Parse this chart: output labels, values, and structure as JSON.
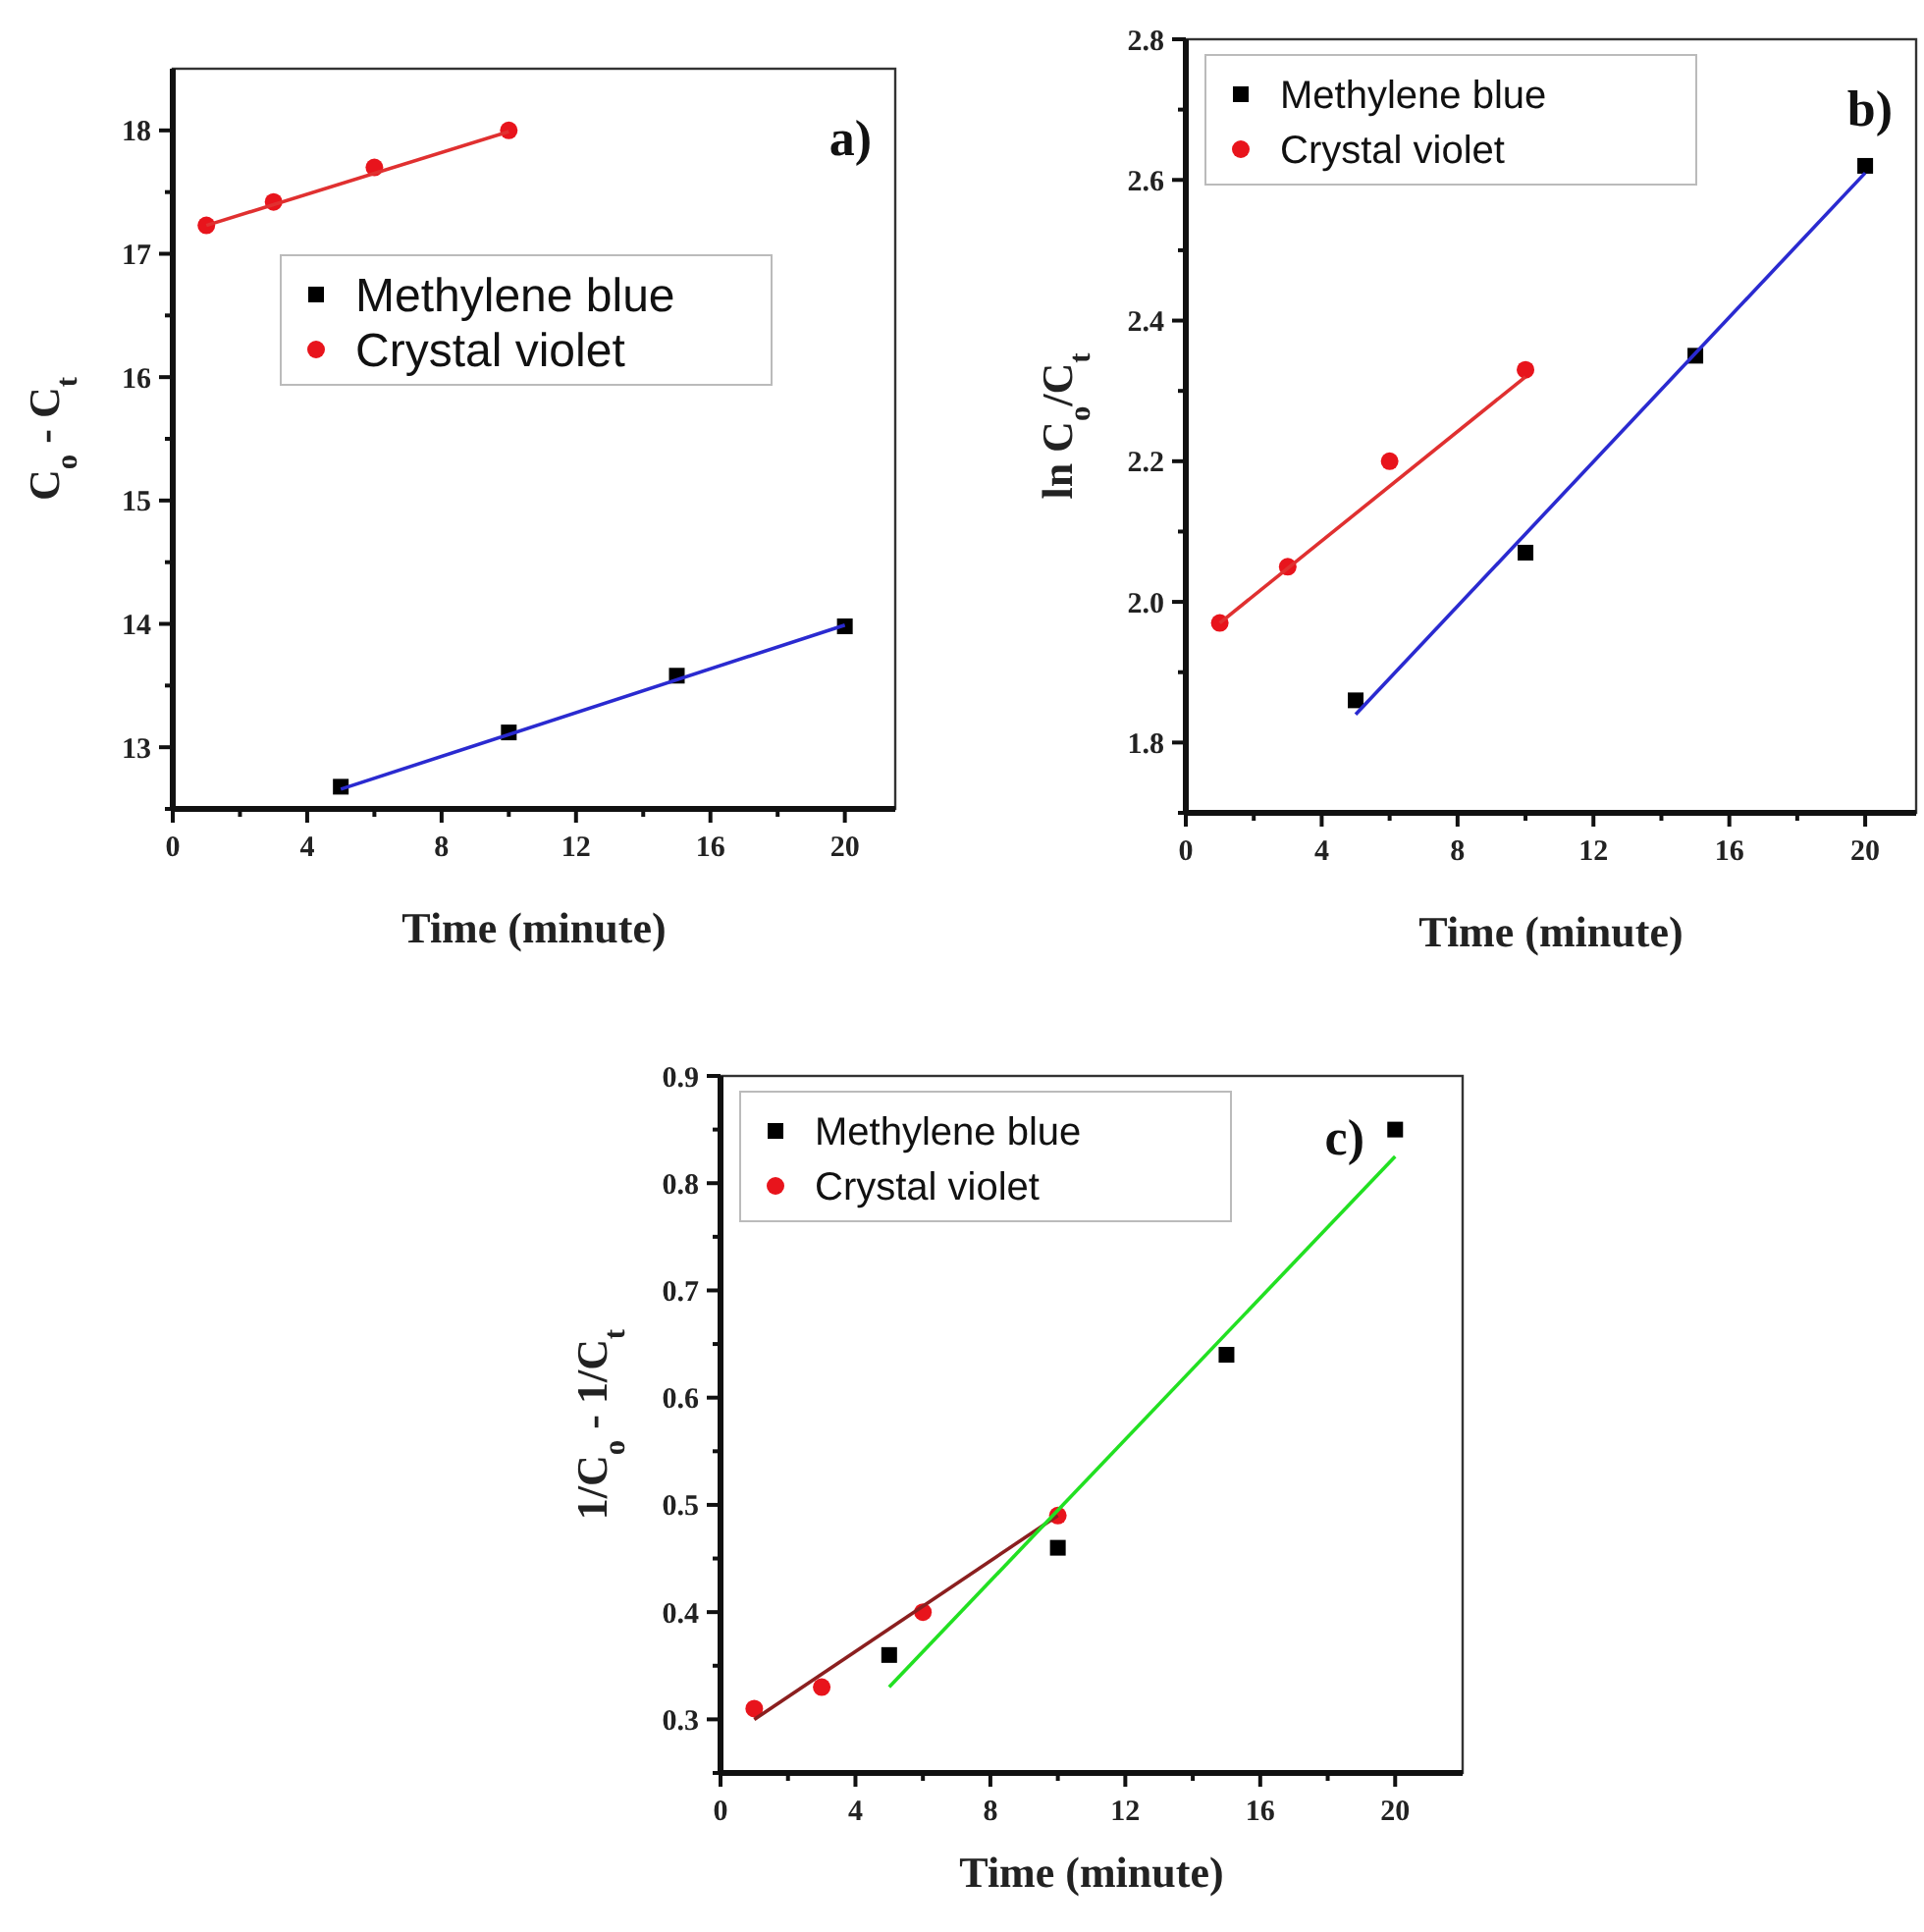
{
  "chart_data": [
    {
      "type": "scatter",
      "xlabel": "Time (minute)",
      "ylabel": "C$_{o}$ - C$_{t}$",
      "xlim": [
        0,
        21.5
      ],
      "ylim": [
        12.5,
        18.5
      ],
      "xticks": [
        0,
        {
          "value": 2,
          "label": null
        },
        4,
        {
          "value": 6,
          "label": null
        },
        8,
        {
          "value": 10,
          "label": null
        },
        12,
        {
          "value": 14,
          "label": null
        },
        16,
        {
          "value": 18,
          "label": null
        },
        20
      ],
      "yticks": [
        {
          "value": 12.5,
          "label": null
        },
        13,
        {
          "value": 13.5,
          "label": null
        },
        14,
        {
          "value": 14.5,
          "label": null
        },
        15,
        {
          "value": 15.5,
          "label": null
        },
        16,
        {
          "value": 16.5,
          "label": null
        },
        17,
        {
          "value": 17.5,
          "label": null
        },
        18
      ],
      "grid": false,
      "legend": "top left",
      "annotations": [
        "a)"
      ],
      "series": [
        {
          "name": "Methylene blue",
          "color": "#000000",
          "marker": "square",
          "x": [
            5,
            10,
            15,
            20
          ],
          "values": [
            12.68,
            13.12,
            13.58,
            13.98
          ]
        },
        {
          "name": "Crystal violet",
          "color": "#e8141c",
          "marker": "circle",
          "x": [
            1,
            3,
            6,
            10
          ],
          "values": [
            17.23,
            17.42,
            17.7,
            18.0
          ]
        },
        {
          "type": "line",
          "color": "#2a2ad0",
          "x": [
            5,
            20
          ],
          "values": [
            12.66,
            13.99
          ]
        },
        {
          "type": "line",
          "color": "#e03030",
          "x": [
            1,
            10
          ],
          "values": [
            17.23,
            17.99
          ]
        }
      ]
    },
    {
      "type": "scatter",
      "xlabel": "Time (minute)",
      "ylabel": "ln C$_{o}$/C$_{t}$",
      "xlim": [
        0,
        21.5
      ],
      "ylim": [
        1.7,
        2.8
      ],
      "xticks": [
        0,
        {
          "value": 2,
          "label": null
        },
        4,
        {
          "value": 6,
          "label": null
        },
        8,
        {
          "value": 10,
          "label": null
        },
        12,
        {
          "value": 14,
          "label": null
        },
        16,
        {
          "value": 18,
          "label": null
        },
        20
      ],
      "yticks": [
        {
          "value": 1.7,
          "label": null
        },
        {
          "value": 1.8,
          "label": "1.8"
        },
        {
          "value": 1.9,
          "label": null
        },
        {
          "value": 2.0,
          "label": "2.0"
        },
        {
          "value": 2.1,
          "label": null
        },
        {
          "value": 2.2,
          "label": "2.2"
        },
        {
          "value": 2.3,
          "label": null
        },
        {
          "value": 2.4,
          "label": "2.4"
        },
        {
          "value": 2.5,
          "label": null
        },
        {
          "value": 2.6,
          "label": "2.6"
        },
        {
          "value": 2.7,
          "label": null
        },
        {
          "value": 2.8,
          "label": "2.8"
        }
      ],
      "grid": false,
      "legend": "top left",
      "annotations": [
        "b)"
      ],
      "series": [
        {
          "name": "Methylene blue",
          "color": "#000000",
          "marker": "square",
          "x": [
            5,
            10,
            15,
            20
          ],
          "values": [
            1.86,
            2.07,
            2.35,
            2.62
          ]
        },
        {
          "name": "Crystal violet",
          "color": "#e8141c",
          "marker": "circle",
          "x": [
            1,
            3,
            6,
            10
          ],
          "values": [
            1.97,
            2.05,
            2.2,
            2.33
          ]
        },
        {
          "type": "line",
          "color": "#2a2ad0",
          "x": [
            5,
            20
          ],
          "values": [
            1.84,
            2.61
          ]
        },
        {
          "type": "line",
          "color": "#e03030",
          "x": [
            1,
            10
          ],
          "values": [
            1.97,
            2.32
          ]
        }
      ]
    },
    {
      "type": "scatter",
      "xlabel": "Time (minute)",
      "ylabel": "1/C$_{o}$ - 1/C$_{t}$",
      "xlim": [
        0,
        22
      ],
      "ylim": [
        0.25,
        0.9
      ],
      "xticks": [
        0,
        {
          "value": 2,
          "label": null
        },
        4,
        {
          "value": 6,
          "label": null
        },
        8,
        {
          "value": 10,
          "label": null
        },
        12,
        {
          "value": 14,
          "label": null
        },
        16,
        {
          "value": 18,
          "label": null
        },
        20
      ],
      "yticks": [
        {
          "value": 0.25,
          "label": null
        },
        0.3,
        {
          "value": 0.35,
          "label": null
        },
        0.4,
        {
          "value": 0.45,
          "label": null
        },
        0.5,
        {
          "value": 0.55,
          "label": null
        },
        0.6,
        {
          "value": 0.65,
          "label": null
        },
        0.7,
        {
          "value": 0.75,
          "label": null
        },
        0.8,
        {
          "value": 0.85,
          "label": null
        },
        0.9
      ],
      "grid": false,
      "legend": "top left",
      "annotations": [
        "c)"
      ],
      "series": [
        {
          "name": "Methylene blue",
          "color": "#000000",
          "marker": "square",
          "x": [
            5,
            10,
            15,
            20
          ],
          "values": [
            0.36,
            0.46,
            0.64,
            0.85
          ]
        },
        {
          "name": "Crystal violet",
          "color": "#e8141c",
          "marker": "circle",
          "x": [
            1,
            3,
            6,
            10
          ],
          "values": [
            0.31,
            0.33,
            0.4,
            0.49
          ]
        },
        {
          "type": "line",
          "color": "#8b1f1f",
          "x": [
            1,
            10
          ],
          "values": [
            0.3,
            0.49
          ]
        },
        {
          "type": "line",
          "color": "#22e022",
          "x": [
            5,
            20
          ],
          "values": [
            0.33,
            0.825
          ]
        }
      ]
    }
  ]
}
